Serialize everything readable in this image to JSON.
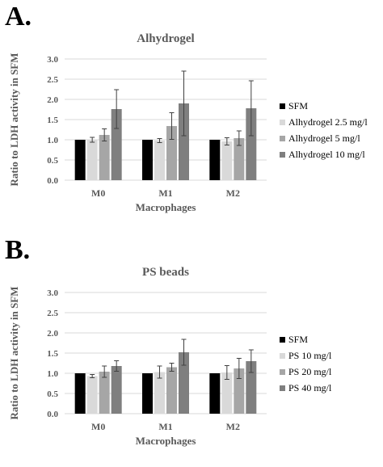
{
  "chart_data": [
    {
      "panel_label": "A.",
      "type": "bar",
      "title": "Alhydrogel",
      "xlabel": "Macrophages",
      "ylabel": "Ratio to LDH activity in SFM",
      "ylim": [
        0,
        3.0
      ],
      "yticks": [
        "0.0",
        "0.5",
        "1.0",
        "1.5",
        "2.0",
        "2.5",
        "3.0"
      ],
      "categories": [
        "M0",
        "M1",
        "M2"
      ],
      "grid": true,
      "legend_position": "right",
      "series": [
        {
          "name": "SFM",
          "color": "#000000",
          "values": [
            1.0,
            1.0,
            1.0
          ],
          "errors": [
            0,
            0,
            0
          ]
        },
        {
          "name": "Alhydrogel 2.5 mg/l",
          "color": "#d9d9d9",
          "values": [
            1.0,
            0.98,
            0.96
          ],
          "errors": [
            0.06,
            0.05,
            0.09
          ]
        },
        {
          "name": "Alhydrogel 5 mg/l",
          "color": "#a6a6a6",
          "values": [
            1.12,
            1.34,
            1.04
          ],
          "errors": [
            0.15,
            0.33,
            0.18
          ]
        },
        {
          "name": "Alhydrogel 10 mg/l",
          "color": "#7f7f7f",
          "values": [
            1.76,
            1.9,
            1.78
          ],
          "errors": [
            0.48,
            0.8,
            0.68
          ]
        }
      ]
    },
    {
      "panel_label": "B.",
      "type": "bar",
      "title": "PS beads",
      "xlabel": "Macrophages",
      "ylabel": "Ratio to LDH activity in SFM",
      "ylim": [
        0,
        3.0
      ],
      "yticks": [
        "0.0",
        "0.5",
        "1.0",
        "1.5",
        "2.0",
        "2.5",
        "3.0"
      ],
      "categories": [
        "M0",
        "M1",
        "M2"
      ],
      "grid": true,
      "legend_position": "right",
      "series": [
        {
          "name": "SFM",
          "color": "#000000",
          "values": [
            1.0,
            1.0,
            1.0
          ],
          "errors": [
            0,
            0,
            0
          ]
        },
        {
          "name": "PS 10 mg/l",
          "color": "#d9d9d9",
          "values": [
            0.93,
            1.03,
            1.02
          ],
          "errors": [
            0.04,
            0.15,
            0.17
          ]
        },
        {
          "name": "PS 20 mg/l",
          "color": "#a6a6a6",
          "values": [
            1.04,
            1.15,
            1.12
          ],
          "errors": [
            0.14,
            0.1,
            0.25
          ]
        },
        {
          "name": "PS 40 mg/l",
          "color": "#7f7f7f",
          "values": [
            1.18,
            1.52,
            1.3
          ],
          "errors": [
            0.13,
            0.32,
            0.28
          ]
        }
      ]
    }
  ]
}
